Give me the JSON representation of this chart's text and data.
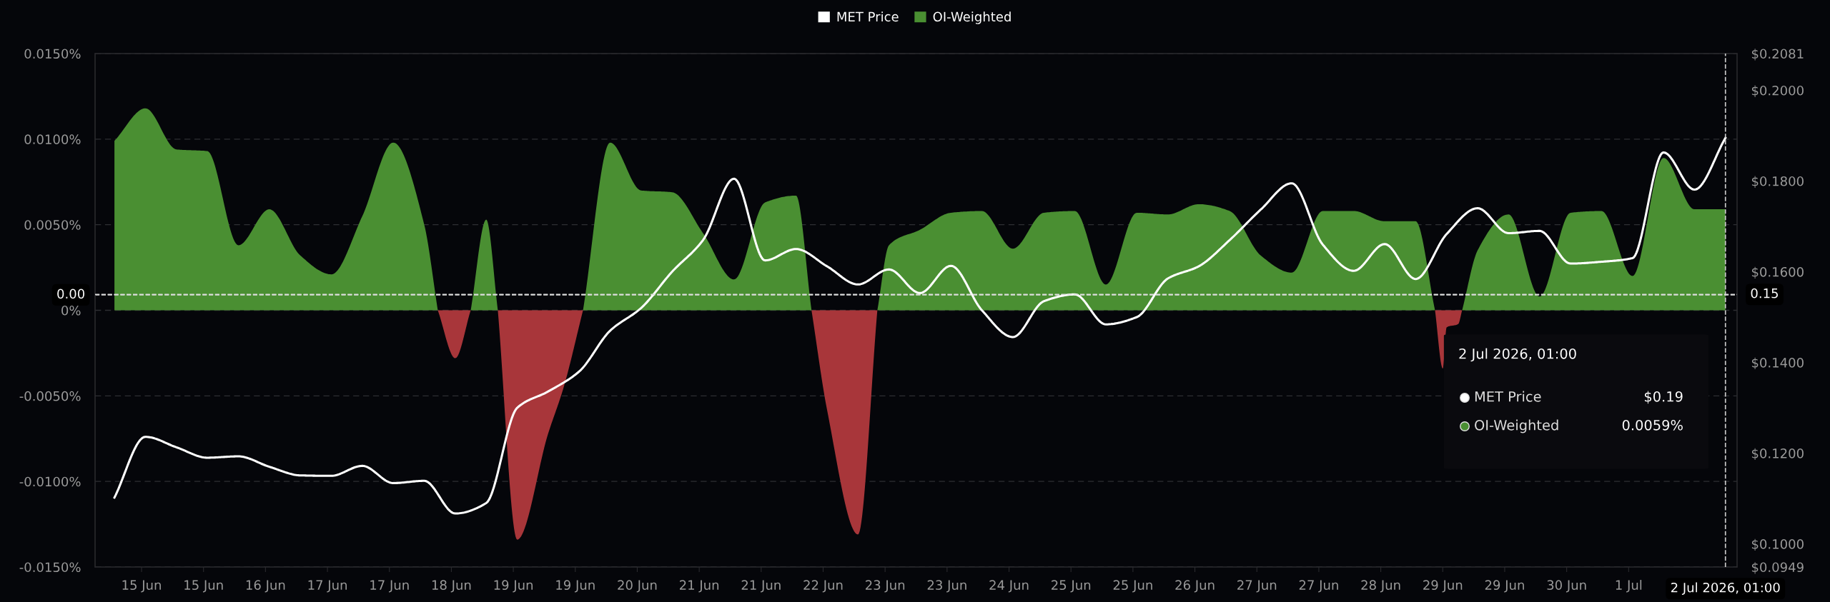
{
  "chart_data": {
    "type": "area",
    "x": [
      "2026-06-14T17:00",
      "2026-06-15T01:00",
      "2026-06-15T09:00",
      "2026-06-15T17:00",
      "2026-06-16T01:00",
      "2026-06-16T09:00",
      "2026-06-16T17:00",
      "2026-06-17T01:00",
      "2026-06-17T09:00",
      "2026-06-17T17:00",
      "2026-06-18T01:00",
      "2026-06-18T09:00",
      "2026-06-18T17:00",
      "2026-06-19T01:00",
      "2026-06-19T09:00",
      "2026-06-19T17:00",
      "2026-06-20T01:00",
      "2026-06-20T09:00",
      "2026-06-20T17:00",
      "2026-06-21T01:00",
      "2026-06-21T09:00",
      "2026-06-21T17:00",
      "2026-06-22T01:00",
      "2026-06-22T09:00",
      "2026-06-22T17:00",
      "2026-06-23T01:00",
      "2026-06-23T09:00",
      "2026-06-23T17:00",
      "2026-06-24T01:00",
      "2026-06-24T09:00",
      "2026-06-24T17:00",
      "2026-06-25T01:00",
      "2026-06-25T09:00",
      "2026-06-25T17:00",
      "2026-06-26T01:00",
      "2026-06-26T09:00",
      "2026-06-26T17:00",
      "2026-06-27T01:00",
      "2026-06-27T09:00",
      "2026-06-27T17:00",
      "2026-06-28T01:00",
      "2026-06-28T09:00",
      "2026-06-28T17:00",
      "2026-06-29T01:00",
      "2026-06-29T09:00",
      "2026-06-29T17:00",
      "2026-06-30T01:00",
      "2026-06-30T09:00",
      "2026-06-30T17:00",
      "2026-07-01T01:00",
      "2026-07-01T09:00",
      "2026-07-01T17:00",
      "2026-07-02T01:00"
    ],
    "series": [
      {
        "name": "MET Price",
        "type": "line",
        "axis": "y2",
        "color": "#ffffff",
        "values": [
          0.1102,
          0.1236,
          0.1213,
          0.119,
          0.1193,
          0.117,
          0.1151,
          0.115,
          0.1172,
          0.1134,
          0.1139,
          0.1067,
          0.109,
          0.13,
          0.1336,
          0.138,
          0.147,
          0.152,
          0.16,
          0.167,
          0.1805,
          0.1625,
          0.165,
          0.1612,
          0.1572,
          0.1605,
          0.1553,
          0.1613,
          0.1515,
          0.1456,
          0.1535,
          0.155,
          0.1484,
          0.15,
          0.1585,
          0.1612,
          0.167,
          0.1737,
          0.1795,
          0.166,
          0.1602,
          0.1661,
          0.1584,
          0.1683,
          0.174,
          0.1685,
          0.169,
          0.1618,
          0.1622,
          0.163,
          0.1863,
          0.1781,
          0.1895
        ]
      },
      {
        "name": "OI-Weighted",
        "color": "#4a8f32",
        "x": [
          "2026-06-14T17:00",
          "2026-06-15T01:00",
          "2026-06-15T09:00",
          "2026-06-15T17:00",
          "2026-06-16T01:00",
          "2026-06-16T09:00",
          "2026-06-16T17:00",
          "2026-06-17T01:00",
          "2026-06-17T09:00",
          "2026-06-17T17:00",
          "2026-06-18T01:00",
          "2026-06-18T04:30",
          "2026-06-18T09:00",
          "2026-06-18T13:00",
          "2026-06-18T17:00",
          "2026-06-18T20:00",
          "2026-06-19T09:00",
          "2026-06-19T18:00",
          "2026-06-20T01:00",
          "2026-06-20T09:00",
          "2026-06-20T17:00",
          "2026-06-21T01:00",
          "2026-06-21T09:00",
          "2026-06-21T17:00",
          "2026-06-22T01:00",
          "2026-06-22T05:00",
          "2026-06-22T17:00",
          "2026-06-22T22:00",
          "2026-06-23T01:00",
          "2026-06-23T09:00",
          "2026-06-23T17:00",
          "2026-06-24T01:00",
          "2026-06-24T09:00",
          "2026-06-24T17:00",
          "2026-06-25T01:00",
          "2026-06-25T09:00",
          "2026-06-25T17:00",
          "2026-06-26T01:00",
          "2026-06-26T09:00",
          "2026-06-26T17:00",
          "2026-06-27T01:00",
          "2026-06-27T09:00",
          "2026-06-27T17:00",
          "2026-06-28T01:00",
          "2026-06-28T09:00",
          "2026-06-28T17:00",
          "2026-06-28T22:00",
          "2026-06-29T00:00",
          "2026-06-29T05:00",
          "2026-06-29T09:00",
          "2026-06-29T17:00",
          "2026-06-30T01:00",
          "2026-06-30T09:00",
          "2026-06-30T17:00",
          "2026-07-01T01:00",
          "2026-07-01T09:00",
          "2026-07-01T17:00",
          "2026-07-02T01:00"
        ],
        "values": [
          0.0099,
          0.0118,
          0.0094,
          0.0093,
          0.0038,
          0.0059,
          0.0032,
          0.0021,
          0.0055,
          0.0098,
          0.005,
          0,
          null,
          0,
          0.0053,
          0,
          null,
          0,
          0.0098,
          0.007,
          0.0069,
          0.0045,
          0.0018,
          0.0063,
          0.0067,
          0,
          null,
          0,
          0.0038,
          0.0047,
          0.0057,
          0.0058,
          0.0036,
          0.0057,
          0.0058,
          0.0015,
          0.0057,
          0.0056,
          0.0062,
          0.0058,
          0.0032,
          0.0022,
          0.0058,
          0.0058,
          0.0052,
          0.0052,
          0,
          null,
          0,
          0.0035,
          0.0056,
          0.0008,
          0.0057,
          0.0058,
          0.002,
          0.0089,
          0.0059,
          0.0059
        ]
      },
      {
        "color": "#a8363a",
        "x": [
          "2026-06-18T04:30",
          "2026-06-18T09:00",
          "2026-06-18T13:00",
          "2026-06-18T17:00",
          "2026-06-18T20:00",
          "2026-06-19T01:00",
          "2026-06-19T09:00",
          "2026-06-19T13:00",
          "2026-06-19T18:00",
          "2026-06-20T01:00",
          "2026-06-22T05:00",
          "2026-06-22T09:00",
          "2026-06-22T17:00",
          "2026-06-22T22:00",
          "2026-06-23T01:00",
          "2026-06-28T22:00",
          "2026-06-29T00:00",
          "2026-06-29T01:00",
          "2026-06-29T04:00",
          "2026-06-29T05:00"
        ],
        "values": [
          0,
          -0.0028,
          0,
          null,
          0,
          -0.0134,
          -0.0072,
          -0.0045,
          0,
          null,
          0,
          -0.0058,
          -0.0131,
          0,
          null,
          0,
          -0.0034,
          -0.001,
          -0.0008,
          0
        ]
      }
    ],
    "xlim": [
      "2026-06-14T12:00",
      "2026-07-02T04:00"
    ],
    "xticks": [
      {
        "value": "2026-06-15T00:00",
        "label": "15 Jun"
      },
      {
        "value": "2026-06-15T16:00",
        "label": "15 Jun"
      },
      {
        "value": "2026-06-16T08:00",
        "label": "16 Jun"
      },
      {
        "value": "2026-06-17T00:00",
        "label": "17 Jun"
      },
      {
        "value": "2026-06-17T16:00",
        "label": "17 Jun"
      },
      {
        "value": "2026-06-18T08:00",
        "label": "18 Jun"
      },
      {
        "value": "2026-06-19T00:00",
        "label": "19 Jun"
      },
      {
        "value": "2026-06-19T16:00",
        "label": "19 Jun"
      },
      {
        "value": "2026-06-20T08:00",
        "label": "20 Jun"
      },
      {
        "value": "2026-06-21T00:00",
        "label": "21 Jun"
      },
      {
        "value": "2026-06-21T16:00",
        "label": "21 Jun"
      },
      {
        "value": "2026-06-22T08:00",
        "label": "22 Jun"
      },
      {
        "value": "2026-06-23T00:00",
        "label": "23 Jun"
      },
      {
        "value": "2026-06-23T16:00",
        "label": "23 Jun"
      },
      {
        "value": "2026-06-24T08:00",
        "label": "24 Jun"
      },
      {
        "value": "2026-06-25T00:00",
        "label": "25 Jun"
      },
      {
        "value": "2026-06-25T16:00",
        "label": "25 Jun"
      },
      {
        "value": "2026-06-26T08:00",
        "label": "26 Jun"
      },
      {
        "value": "2026-06-27T00:00",
        "label": "27 Jun"
      },
      {
        "value": "2026-06-27T16:00",
        "label": "27 Jun"
      },
      {
        "value": "2026-06-28T08:00",
        "label": "28 Jun"
      },
      {
        "value": "2026-06-29T00:00",
        "label": "29 Jun"
      },
      {
        "value": "2026-06-29T16:00",
        "label": "29 Jun"
      },
      {
        "value": "2026-06-30T08:00",
        "label": "30 Jun"
      },
      {
        "value": "2026-07-01T00:00",
        "label": "1 Jul"
      }
    ],
    "ylim": [
      -0.015,
      0.015
    ],
    "yticks": [
      {
        "value": -0.015,
        "label": "-0.0150%"
      },
      {
        "value": -0.01,
        "label": "-0.0100%"
      },
      {
        "value": -0.005,
        "label": "-0.0050%"
      },
      {
        "value": 0,
        "label": "0%"
      },
      {
        "value": 0.005,
        "label": "0.0050%"
      },
      {
        "value": 0.01,
        "label": "0.0100%"
      },
      {
        "value": 0.015,
        "label": "0.0150%"
      }
    ],
    "y2lim": [
      0.0949,
      0.2081
    ],
    "y2ticks": [
      {
        "value": 0.0949,
        "label": "$0.0949"
      },
      {
        "value": 0.1,
        "label": "$0.1000"
      },
      {
        "value": 0.12,
        "label": "$0.1200"
      },
      {
        "value": 0.14,
        "label": "$0.1400"
      },
      {
        "value": 0.16,
        "label": "$0.1600"
      },
      {
        "value": 0.18,
        "label": "$0.1800"
      },
      {
        "value": 0.2,
        "label": "$0.2000"
      },
      {
        "value": 0.2081,
        "label": "$0.2081"
      }
    ],
    "ref_lines": [
      {
        "axis": "x",
        "value": "2026-07-02T01:00",
        "label": "2 Jul 2026, 01:00",
        "color": "#cccccc",
        "line_style": "dashed"
      },
      {
        "axis": "y",
        "value": 0.0009,
        "label": "0.00",
        "color": "#dddddd",
        "line_style": "dashed"
      },
      {
        "axis": "y2",
        "value": 0.155,
        "label": "0.15",
        "color": "#dddddd",
        "line_style": "dashed"
      }
    ],
    "annotations": [
      "2 Jul 2026, 01:00",
      "MET Price",
      "$0.19",
      "OI-Weighted",
      "0.0059%"
    ],
    "grid": "y",
    "legend": "top"
  }
}
